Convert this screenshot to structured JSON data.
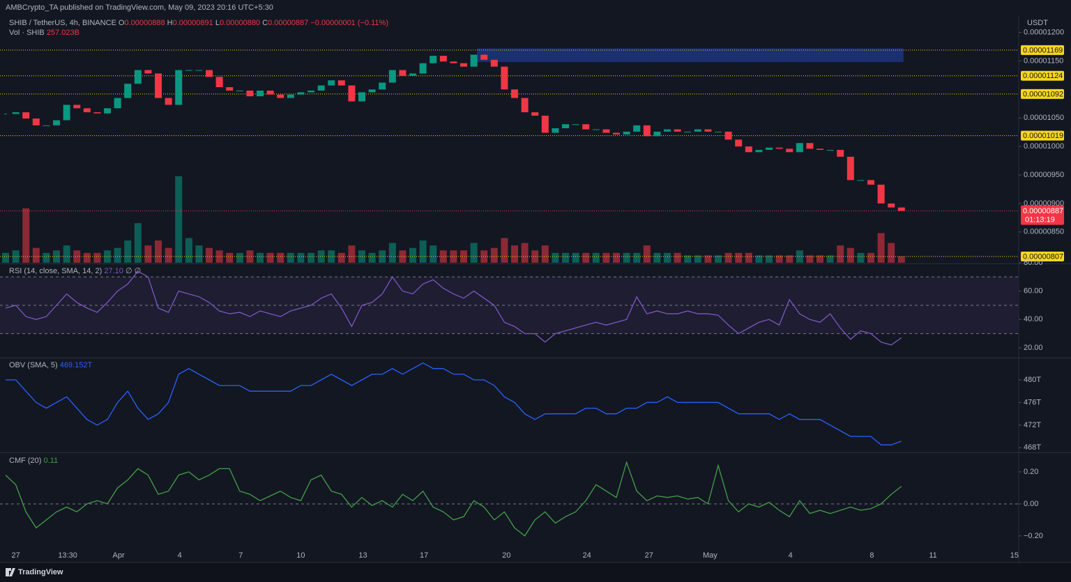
{
  "header": {
    "publisher": "AMBCrypto_TA published on TradingView.com, May 09, 2023 20:16 UTC+5:30",
    "footer": "TradingView"
  },
  "chart_data": [
    {
      "type": "candlestick",
      "symbol": "SHIB / TetherUS, 4h, BINANCE",
      "ohlc": [
        {
          "label": "O",
          "value": "0.00000888"
        },
        {
          "label": "H",
          "value": "0.00000891"
        },
        {
          "label": "L",
          "value": "0.00000880"
        },
        {
          "label": "C",
          "value": "0.00000887"
        }
      ],
      "change": "−0.00000001 (−0.11%)",
      "unit": "USDT",
      "values": [
        1.057e-05,
        1.06e-05,
        1.049e-05,
        1.037e-05,
        1.037e-05,
        1.046e-05,
        1.073e-05,
        1.067e-05,
        1.06e-05,
        1.058e-05,
        1.067e-05,
        1.085e-05,
        1.11e-05,
        1.134e-05,
        1.128e-05,
        1.085e-05,
        1.073e-05,
        1.134e-05,
        1.134e-05,
        1.134e-05,
        1.122e-05,
        1.104e-05,
        1.098e-05,
        1.098e-05,
        1.088e-05,
        1.098e-05,
        1.091e-05,
        1.085e-05,
        1.091e-05,
        1.095e-05,
        1.098e-05,
        1.107e-05,
        1.116e-05,
        1.107e-05,
        1.079e-05,
        1.095e-05,
        1.1e-05,
        1.112e-05,
        1.134e-05,
        1.124e-05,
        1.128e-05,
        1.146e-05,
        1.159e-05,
        1.149e-05,
        1.146e-05,
        1.14e-05,
        1.161e-05,
        1.152e-05,
        1.14e-05,
        1.1e-05,
        1.085e-05,
        1.06e-05,
        1.054e-05,
        1.024e-05,
        1.032e-05,
        1.039e-05,
        1.039e-05,
        1.03e-05,
        1.03e-05,
        1.024e-05,
        1.021e-05,
        1.026e-05,
        1.037e-05,
        1.018e-05,
        1.026e-05,
        1.03e-05,
        1.026e-05,
        1.026e-05,
        1.03e-05,
        1.026e-05,
        1.026e-05,
        1.012e-05,
        1e-05,
        9.9e-06,
        9.94e-06,
        9.98e-06,
        9.96e-06,
        9.9e-06,
        1.006e-05,
        9.96e-06,
        9.94e-06,
        9.94e-06,
        9.82e-06,
        9.41e-06,
        9.41e-06,
        9.33e-06,
        9e-06,
        8.93e-06,
        8.87e-06
      ],
      "colors": {
        "up": "#089981",
        "down": "#f23645"
      },
      "ylim": [
        7.96e-06,
        1.23e-05
      ],
      "yticks": [
        {
          "value": 1.2e-05,
          "label": "0.00001200"
        },
        {
          "value": 1.15e-05,
          "label": "0.00001150"
        },
        {
          "value": 1.05e-05,
          "label": "0.00001050"
        },
        {
          "value": 1e-05,
          "label": "0.00001000"
        },
        {
          "value": 9.5e-06,
          "label": "0.00000950"
        },
        {
          "value": 9e-06,
          "label": "0.00000900"
        },
        {
          "value": 8.5e-06,
          "label": "0.00000850"
        }
      ],
      "xlim": [
        -0.55,
        99.45
      ],
      "xticks": [
        {
          "value": 1,
          "label": "27"
        },
        {
          "value": 6.1,
          "label": "13:30"
        },
        {
          "value": 11.1,
          "label": "Apr"
        },
        {
          "value": 17.1,
          "label": "4"
        },
        {
          "value": 23.1,
          "label": "7"
        },
        {
          "value": 29,
          "label": "10"
        },
        {
          "value": 35.1,
          "label": "13"
        },
        {
          "value": 41.1,
          "label": "17"
        },
        {
          "value": 49.2,
          "label": "20"
        },
        {
          "value": 57.1,
          "label": "24"
        },
        {
          "value": 63.2,
          "label": "27"
        },
        {
          "value": 69.2,
          "label": "May"
        },
        {
          "value": 77.1,
          "label": "4"
        },
        {
          "value": 85.1,
          "label": "8"
        },
        {
          "value": 91.1,
          "label": "11"
        },
        {
          "value": 99.1,
          "label": "15"
        }
      ],
      "levels": [
        {
          "value": 1.169e-05,
          "label": "0.00001169"
        },
        {
          "value": 1.124e-05,
          "label": "0.00001124"
        },
        {
          "value": 1.092e-05,
          "label": "0.00001092"
        },
        {
          "value": 1.019e-05,
          "label": "0.00001019"
        },
        {
          "value": 8.07e-06,
          "label": "0.00000807"
        }
      ],
      "level_color": "#f9d71c",
      "zone": {
        "xlim": [
          46.3,
          88.2
        ],
        "ylim": [
          1.148e-05,
          1.172e-05
        ],
        "color": "#1e3a8a"
      },
      "last": {
        "value": 8.87e-06,
        "label": "0.00000887",
        "countdown": "01:13:19"
      },
      "volume": {
        "name": "Vol · SHIB",
        "value_label": "257.023B",
        "ylim": [
          0,
          10000
        ],
        "values": [
          400,
          500,
          2200,
          600,
          400,
          500,
          700,
          500,
          400,
          400,
          500,
          600,
          900,
          1600,
          700,
          900,
          600,
          3500,
          1000,
          700,
          600,
          500,
          400,
          400,
          500,
          400,
          400,
          400,
          400,
          400,
          400,
          500,
          500,
          400,
          700,
          500,
          400,
          500,
          800,
          500,
          600,
          900,
          700,
          500,
          500,
          500,
          800,
          500,
          600,
          1000,
          700,
          800,
          500,
          700,
          400,
          400,
          400,
          400,
          400,
          400,
          400,
          400,
          400,
          700,
          400,
          400,
          400,
          300,
          300,
          300,
          300,
          400,
          400,
          400,
          300,
          300,
          300,
          300,
          500,
          300,
          300,
          300,
          700,
          600,
          400,
          400,
          1200,
          800,
          257.023
        ]
      }
    },
    {
      "type": "line",
      "name": "RSI (14, close, SMA, 14, 2)",
      "legend_value": "27.10",
      "extra": "∅ ∅",
      "color": "#7e57c2",
      "values": [
        48,
        50,
        42,
        40,
        42,
        50,
        58,
        52,
        48,
        45,
        52,
        60,
        65,
        74,
        70,
        48,
        45,
        60,
        58,
        56,
        52,
        46,
        44,
        45,
        42,
        46,
        44,
        42,
        46,
        48,
        50,
        55,
        58,
        48,
        35,
        50,
        52,
        58,
        70,
        60,
        58,
        65,
        68,
        62,
        58,
        55,
        60,
        55,
        50,
        38,
        35,
        30,
        30,
        24,
        30,
        32,
        34,
        36,
        38,
        36,
        38,
        40,
        56,
        44,
        46,
        44,
        44,
        46,
        44,
        44,
        43,
        36,
        30,
        34,
        38,
        40,
        36,
        54,
        44,
        40,
        38,
        44,
        34,
        26,
        32,
        30,
        24,
        22,
        27.1
      ],
      "ylim": [
        13.6,
        78.5
      ],
      "yticks": [
        {
          "value": 80,
          "label": "80.00"
        },
        {
          "value": 60,
          "label": "60.00"
        },
        {
          "value": 40,
          "label": "40.00"
        },
        {
          "value": 20,
          "label": "20.00"
        }
      ],
      "band": [
        30,
        70
      ],
      "levels": [
        30,
        50,
        70
      ]
    },
    {
      "type": "line",
      "name": "OBV (SMA, 5)",
      "legend_value": "469.152T",
      "color": "#2962ff",
      "values": [
        480,
        480,
        478,
        476,
        475,
        476,
        477,
        475,
        473,
        472,
        473,
        476,
        478,
        475,
        473,
        474,
        476,
        481,
        482,
        481,
        480,
        479,
        479,
        479,
        478,
        478,
        478,
        478,
        478,
        479,
        479,
        480,
        481,
        480,
        479,
        480,
        481,
        481,
        482,
        481,
        482,
        483,
        482,
        482,
        481,
        481,
        480,
        480,
        479,
        477,
        476,
        474,
        473,
        474,
        474,
        474,
        474,
        475,
        475,
        474,
        474,
        475,
        475,
        476,
        476,
        477,
        476,
        476,
        476,
        476,
        476,
        475,
        474,
        474,
        474,
        474,
        473,
        474,
        473,
        473,
        473,
        472,
        471,
        470,
        470,
        470,
        468.5,
        468.5,
        469.152
      ],
      "ylim": [
        467.3,
        483.7
      ],
      "yticks": [
        {
          "value": 480,
          "label": "480T"
        },
        {
          "value": 476,
          "label": "476T"
        },
        {
          "value": 472,
          "label": "472T"
        },
        {
          "value": 468,
          "label": "468T"
        }
      ]
    },
    {
      "type": "line",
      "name": "CMF (20)",
      "legend_value": "0.11",
      "color": "#43a047",
      "values": [
        0.18,
        0.12,
        -0.05,
        -0.15,
        -0.1,
        -0.05,
        -0.02,
        -0.05,
        0.0,
        0.02,
        0.0,
        0.1,
        0.15,
        0.22,
        0.18,
        0.06,
        0.08,
        0.18,
        0.2,
        0.15,
        0.18,
        0.22,
        0.22,
        0.08,
        0.06,
        0.02,
        0.05,
        0.08,
        0.04,
        0.02,
        0.15,
        0.18,
        0.08,
        0.06,
        -0.02,
        0.04,
        -0.01,
        0.02,
        -0.02,
        0.06,
        0.02,
        0.08,
        -0.02,
        -0.05,
        -0.1,
        -0.08,
        0.02,
        -0.02,
        -0.1,
        -0.05,
        -0.15,
        -0.2,
        -0.1,
        -0.05,
        -0.12,
        -0.08,
        -0.05,
        0.02,
        0.12,
        0.08,
        0.04,
        0.26,
        0.08,
        0.02,
        0.05,
        0.04,
        0.05,
        0.03,
        0.04,
        0.0,
        0.24,
        0.02,
        -0.05,
        0.0,
        -0.02,
        0.01,
        -0.04,
        -0.08,
        0.02,
        -0.06,
        -0.04,
        -0.06,
        -0.04,
        -0.02,
        -0.04,
        -0.03,
        0.0,
        0.06,
        0.11
      ],
      "ylim": [
        -0.357,
        0.313
      ],
      "yticks": [
        {
          "value": 0.2,
          "label": "0.20"
        },
        {
          "value": 0,
          "label": "0.00"
        },
        {
          "value": -0.2,
          "label": "−0.20"
        }
      ],
      "levels": [
        0
      ]
    }
  ]
}
